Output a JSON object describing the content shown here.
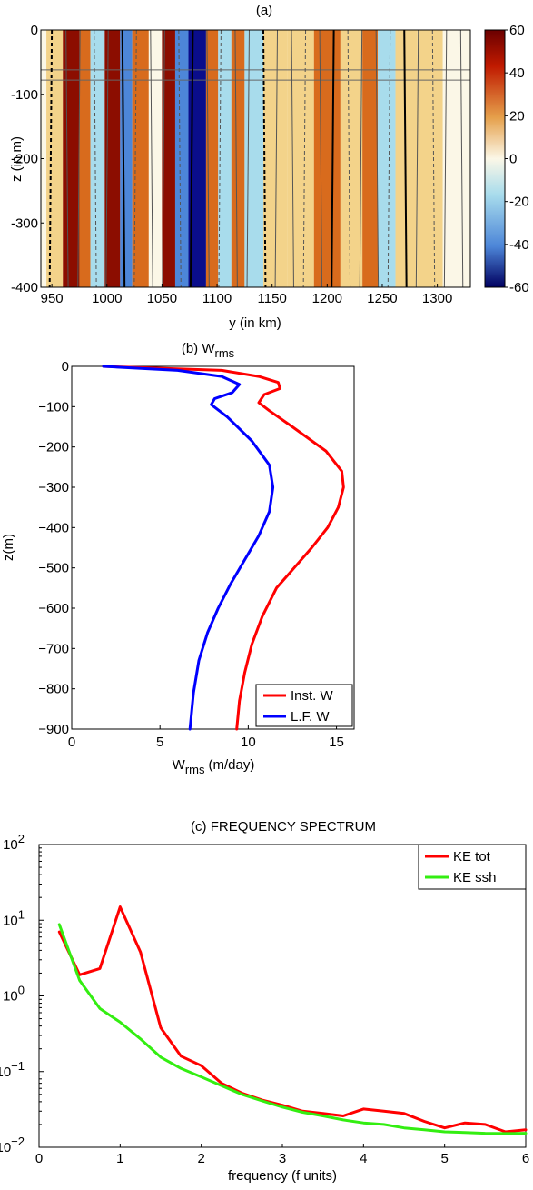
{
  "charts": [
    {
      "panel": "(a)",
      "type": "heatmap",
      "title": "(a)",
      "xlabel": "y (in km)",
      "ylabel": "z (in m)",
      "xlim": [
        940,
        1330
      ],
      "ylim": [
        -400,
        0
      ],
      "xticks": [
        950,
        1000,
        1050,
        1100,
        1150,
        1200,
        1250,
        1300
      ],
      "yticks": [
        0,
        -100,
        -200,
        -300,
        -400
      ],
      "colorbar": {
        "ticks": [
          60,
          40,
          20,
          0,
          -20,
          -40,
          -60
        ],
        "range": [
          -60,
          60
        ]
      },
      "colors": {
        "positive_strong": "#8c0d00",
        "positive_mid": "#d86b1d",
        "positive_light": "#f3d38a",
        "neutral": "#fbf7e7",
        "negative_light": "#a8dcec",
        "negative_mid": "#4d86d8",
        "negative_strong": "#0a0d8b"
      },
      "bands": [
        {
          "start": 945,
          "end": 960,
          "value": 10
        },
        {
          "start": 960,
          "end": 975,
          "value": 50
        },
        {
          "start": 975,
          "end": 985,
          "value": 25
        },
        {
          "start": 985,
          "end": 998,
          "value": -15
        },
        {
          "start": 998,
          "end": 1012,
          "value": 55
        },
        {
          "start": 1012,
          "end": 1023,
          "value": -25
        },
        {
          "start": 1023,
          "end": 1038,
          "value": 25
        },
        {
          "start": 1038,
          "end": 1050,
          "value": 5
        },
        {
          "start": 1050,
          "end": 1062,
          "value": 45
        },
        {
          "start": 1062,
          "end": 1074,
          "value": -30
        },
        {
          "start": 1074,
          "end": 1090,
          "value": -45
        },
        {
          "start": 1090,
          "end": 1101,
          "value": 35
        },
        {
          "start": 1101,
          "end": 1113,
          "value": -20
        },
        {
          "start": 1113,
          "end": 1125,
          "value": 30
        },
        {
          "start": 1125,
          "end": 1142,
          "value": -18
        },
        {
          "start": 1142,
          "end": 1164,
          "value": 20
        },
        {
          "start": 1164,
          "end": 1188,
          "value": 18
        },
        {
          "start": 1188,
          "end": 1212,
          "value": 28
        },
        {
          "start": 1212,
          "end": 1232,
          "value": 10
        },
        {
          "start": 1232,
          "end": 1246,
          "value": 42
        },
        {
          "start": 1246,
          "end": 1262,
          "value": -8
        },
        {
          "start": 1262,
          "end": 1282,
          "value": 22
        },
        {
          "start": 1282,
          "end": 1305,
          "value": 12
        },
        {
          "start": 1305,
          "end": 1330,
          "value": 5
        }
      ]
    },
    {
      "panel": "(b)",
      "type": "line",
      "title": "(b) W",
      "title_sub": "rms",
      "xlabel": "W",
      "xlabel_sub": "rms",
      "xlabel_unit": "(m/day)",
      "ylabel": "z(m)",
      "xlim": [
        0,
        16
      ],
      "ylim": [
        -900,
        0
      ],
      "xticks": [
        0,
        5,
        10,
        15
      ],
      "yticks": [
        0,
        -100,
        -200,
        -300,
        -400,
        -500,
        -600,
        -700,
        -800,
        -900
      ],
      "legend": [
        "Inst. W",
        "L.F. W"
      ],
      "colors": [
        "#ff0000",
        "#0000ff"
      ],
      "series": [
        {
          "name": "Inst. W",
          "x": [
            1.8,
            8.5,
            10.6,
            11.7,
            11.8,
            10.9,
            10.6,
            11.2,
            12.5,
            14.4,
            15.3,
            15.4,
            15.1,
            14.5,
            13.6,
            12.6,
            11.6,
            10.8,
            10.2,
            9.8,
            9.5,
            9.35
          ],
          "y": [
            0,
            -10,
            -25,
            -40,
            -55,
            -70,
            -90,
            -110,
            -150,
            -210,
            -260,
            -300,
            -350,
            -400,
            -450,
            -500,
            -550,
            -620,
            -690,
            -760,
            -830,
            -900
          ]
        },
        {
          "name": "L.F. W",
          "x": [
            1.8,
            6.0,
            8.5,
            9.5,
            9.1,
            8.1,
            7.9,
            8.8,
            10.2,
            11.2,
            11.4,
            11.2,
            10.6,
            9.8,
            9.0,
            8.3,
            7.7,
            7.2,
            6.9,
            6.7
          ],
          "y": [
            0,
            -10,
            -25,
            -45,
            -65,
            -80,
            -95,
            -125,
            -185,
            -245,
            -300,
            -360,
            -420,
            -480,
            -540,
            -600,
            -660,
            -730,
            -810,
            -900
          ]
        }
      ]
    },
    {
      "panel": "(c)",
      "type": "line",
      "title": "(c) FREQUENCY SPECTRUM",
      "xlabel": "frequency (f units)",
      "ylabel": "",
      "xlim": [
        0,
        6
      ],
      "ylim": [
        0.01,
        100
      ],
      "yscale": "log",
      "xticks": [
        0,
        1,
        2,
        3,
        4,
        5,
        6
      ],
      "yticks": [
        100,
        10,
        1,
        0.1,
        0.01
      ],
      "ytick_labels": [
        {
          "base": "10",
          "exp": "2"
        },
        {
          "base": "10",
          "exp": "1"
        },
        {
          "base": "10",
          "exp": "0"
        },
        {
          "base": "10",
          "exp": "−1"
        },
        {
          "base": "10",
          "exp": "−2"
        }
      ],
      "legend": [
        "KE tot",
        "KE ssh"
      ],
      "colors": [
        "#ff0000",
        "#33ee11"
      ],
      "series": [
        {
          "name": "KE tot",
          "x": [
            0.25,
            0.5,
            0.75,
            1.0,
            1.25,
            1.5,
            1.75,
            2.0,
            2.25,
            2.5,
            2.75,
            3.0,
            3.25,
            3.5,
            3.75,
            4.0,
            4.25,
            4.5,
            4.75,
            5.0,
            5.25,
            5.5,
            5.75,
            6.0
          ],
          "y": [
            7.0,
            1.9,
            2.3,
            15.0,
            3.8,
            0.38,
            0.16,
            0.12,
            0.07,
            0.052,
            0.042,
            0.036,
            0.03,
            0.028,
            0.026,
            0.032,
            0.03,
            0.028,
            0.022,
            0.018,
            0.021,
            0.02,
            0.016,
            0.017
          ]
        },
        {
          "name": "KE ssh",
          "x": [
            0.25,
            0.5,
            0.75,
            1.0,
            1.25,
            1.5,
            1.75,
            2.0,
            2.25,
            2.5,
            2.75,
            3.0,
            3.25,
            3.5,
            3.75,
            4.0,
            4.25,
            4.5,
            4.75,
            5.0,
            5.25,
            5.5,
            5.75,
            6.0
          ],
          "y": [
            8.8,
            1.6,
            0.68,
            0.45,
            0.27,
            0.155,
            0.11,
            0.085,
            0.065,
            0.05,
            0.041,
            0.034,
            0.029,
            0.026,
            0.023,
            0.021,
            0.02,
            0.018,
            0.017,
            0.016,
            0.0157,
            0.0153,
            0.0152,
            0.0153
          ]
        }
      ]
    }
  ]
}
